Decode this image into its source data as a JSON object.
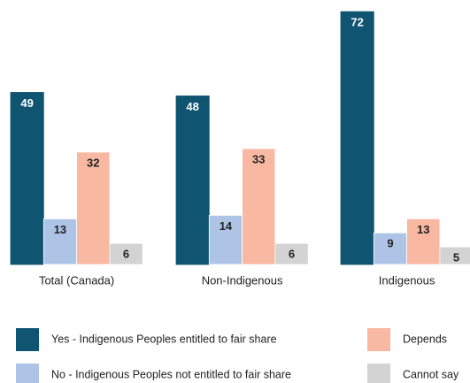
{
  "chart_data": {
    "type": "bar",
    "categories": [
      "Total (Canada)",
      "Non-Indigenous",
      "Indigenous"
    ],
    "series": [
      {
        "name": "Yes - Indigenous Peoples entitled to fair share",
        "color": "#0f5470",
        "values": [
          49,
          48,
          72
        ]
      },
      {
        "name": "No - Indigenous Peoples not entitled to fair share",
        "color": "#aec4e6",
        "values": [
          13,
          14,
          9
        ]
      },
      {
        "name": "Depends",
        "color": "#f8b8a2",
        "values": [
          32,
          33,
          13
        ]
      },
      {
        "name": "Cannot say",
        "color": "#d3d3d3",
        "values": [
          6,
          6,
          5
        ]
      }
    ]
  }
}
